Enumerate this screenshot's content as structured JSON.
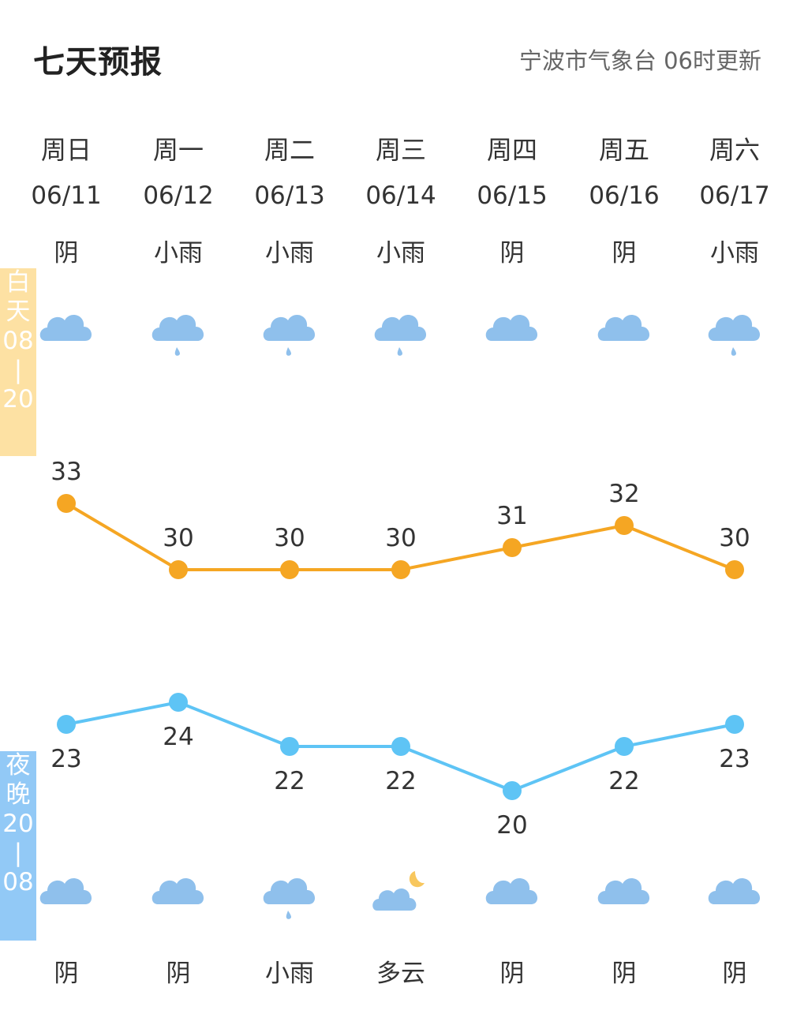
{
  "header": {
    "title": "七天预报",
    "source": "宁波市气象台 06时更新"
  },
  "side_labels": {
    "day": [
      "白",
      "天",
      "08",
      "|",
      "20"
    ],
    "night": [
      "夜",
      "晚",
      "20",
      "|",
      "08"
    ]
  },
  "colors": {
    "day_line": "#f5a623",
    "night_line": "#5ec4f5",
    "cloud": "#8fc0ec",
    "moon": "#f8c75e"
  },
  "days": [
    {
      "weekday": "周日",
      "date": "06/11",
      "day_weather": "阴",
      "day_icon": "cloudy-icon",
      "night_weather": "阴",
      "night_icon": "cloudy-icon"
    },
    {
      "weekday": "周一",
      "date": "06/12",
      "day_weather": "小雨",
      "day_icon": "light-rain-icon",
      "night_weather": "阴",
      "night_icon": "cloudy-icon"
    },
    {
      "weekday": "周二",
      "date": "06/13",
      "day_weather": "小雨",
      "day_icon": "light-rain-icon",
      "night_weather": "小雨",
      "night_icon": "light-rain-icon"
    },
    {
      "weekday": "周三",
      "date": "06/14",
      "day_weather": "小雨",
      "day_icon": "light-rain-icon",
      "night_weather": "多云",
      "night_icon": "partly-cloudy-night-icon"
    },
    {
      "weekday": "周四",
      "date": "06/15",
      "day_weather": "阴",
      "day_icon": "cloudy-icon",
      "night_weather": "阴",
      "night_icon": "cloudy-icon"
    },
    {
      "weekday": "周五",
      "date": "06/16",
      "day_weather": "阴",
      "day_icon": "cloudy-icon",
      "night_weather": "阴",
      "night_icon": "cloudy-icon"
    },
    {
      "weekday": "周六",
      "date": "06/17",
      "day_weather": "小雨",
      "day_icon": "light-rain-icon",
      "night_weather": "阴",
      "night_icon": "cloudy-icon"
    }
  ],
  "chart_data": {
    "type": "line",
    "categories": [
      "06/11",
      "06/12",
      "06/13",
      "06/14",
      "06/15",
      "06/16",
      "06/17"
    ],
    "series": [
      {
        "name": "白天",
        "values": [
          33,
          30,
          30,
          30,
          31,
          32,
          30
        ]
      },
      {
        "name": "夜晚",
        "values": [
          23,
          24,
          22,
          22,
          20,
          22,
          23
        ]
      }
    ],
    "grid": false
  }
}
